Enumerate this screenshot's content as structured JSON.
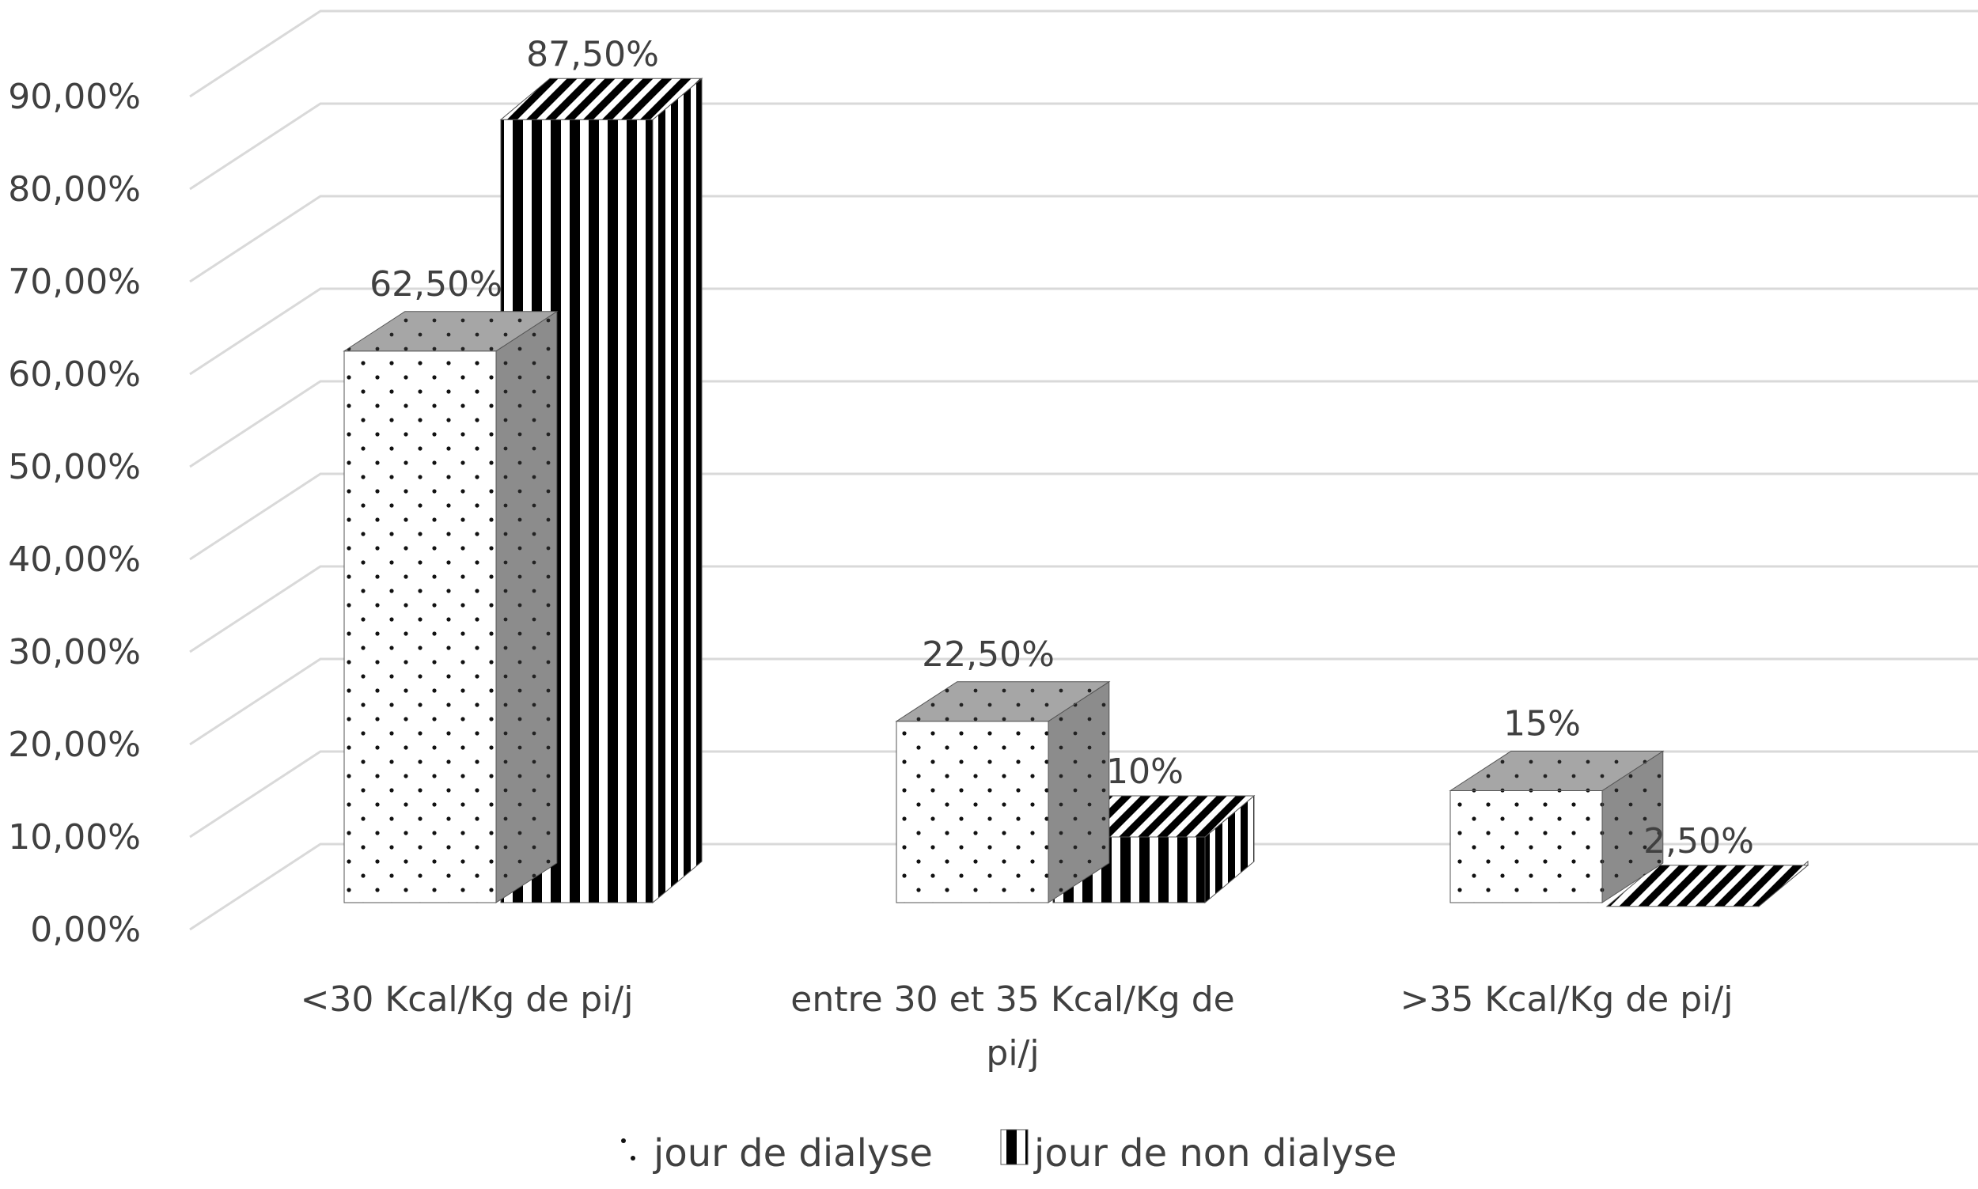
{
  "chart_data": {
    "type": "bar",
    "title": "",
    "xlabel": "",
    "ylabel": "",
    "categories": [
      "<30 Kcal/Kg de pi/j",
      "entre 30 et 35 Kcal/Kg de pi/j",
      ">35 Kcal/Kg de pi/j"
    ],
    "category_lines": [
      [
        "<30 Kcal/Kg de pi/j"
      ],
      [
        "entre 30 et 35 Kcal/Kg de",
        "pi/j"
      ],
      [
        ">35 Kcal/Kg de pi/j"
      ]
    ],
    "series": [
      {
        "name": "jour de dialyse",
        "values": [
          0.625,
          0.225,
          0.15
        ],
        "labels": [
          "62,50%",
          "22,50%",
          "15%"
        ],
        "pattern": "dots"
      },
      {
        "name": "jour de non dialyse",
        "values": [
          0.875,
          0.1,
          0.025
        ],
        "labels": [
          "87,50%",
          "10%",
          "2,50%"
        ],
        "pattern": "vertical-stripes"
      }
    ],
    "ylim": [
      0,
      0.9
    ],
    "yticks": [
      0,
      0.1,
      0.2,
      0.3,
      0.4,
      0.5,
      0.6,
      0.7,
      0.8,
      0.9
    ],
    "ytick_labels": [
      "0,00%",
      "10,00%",
      "20,00%",
      "30,00%",
      "40,00%",
      "50,00%",
      "60,00%",
      "70,00%",
      "80,00%",
      "90,00%"
    ],
    "grid": true,
    "three_d": true,
    "legend_position": "bottom",
    "colors": {
      "grid": "#d9d9d9",
      "text": "#404040",
      "dot_face": "#ffffff",
      "dot_mark": "#111111",
      "top_face": "#a6a6a6",
      "side_face": "#8c8c8c",
      "stripe_dark": "#000000",
      "stripe_light": "#ffffff"
    }
  }
}
